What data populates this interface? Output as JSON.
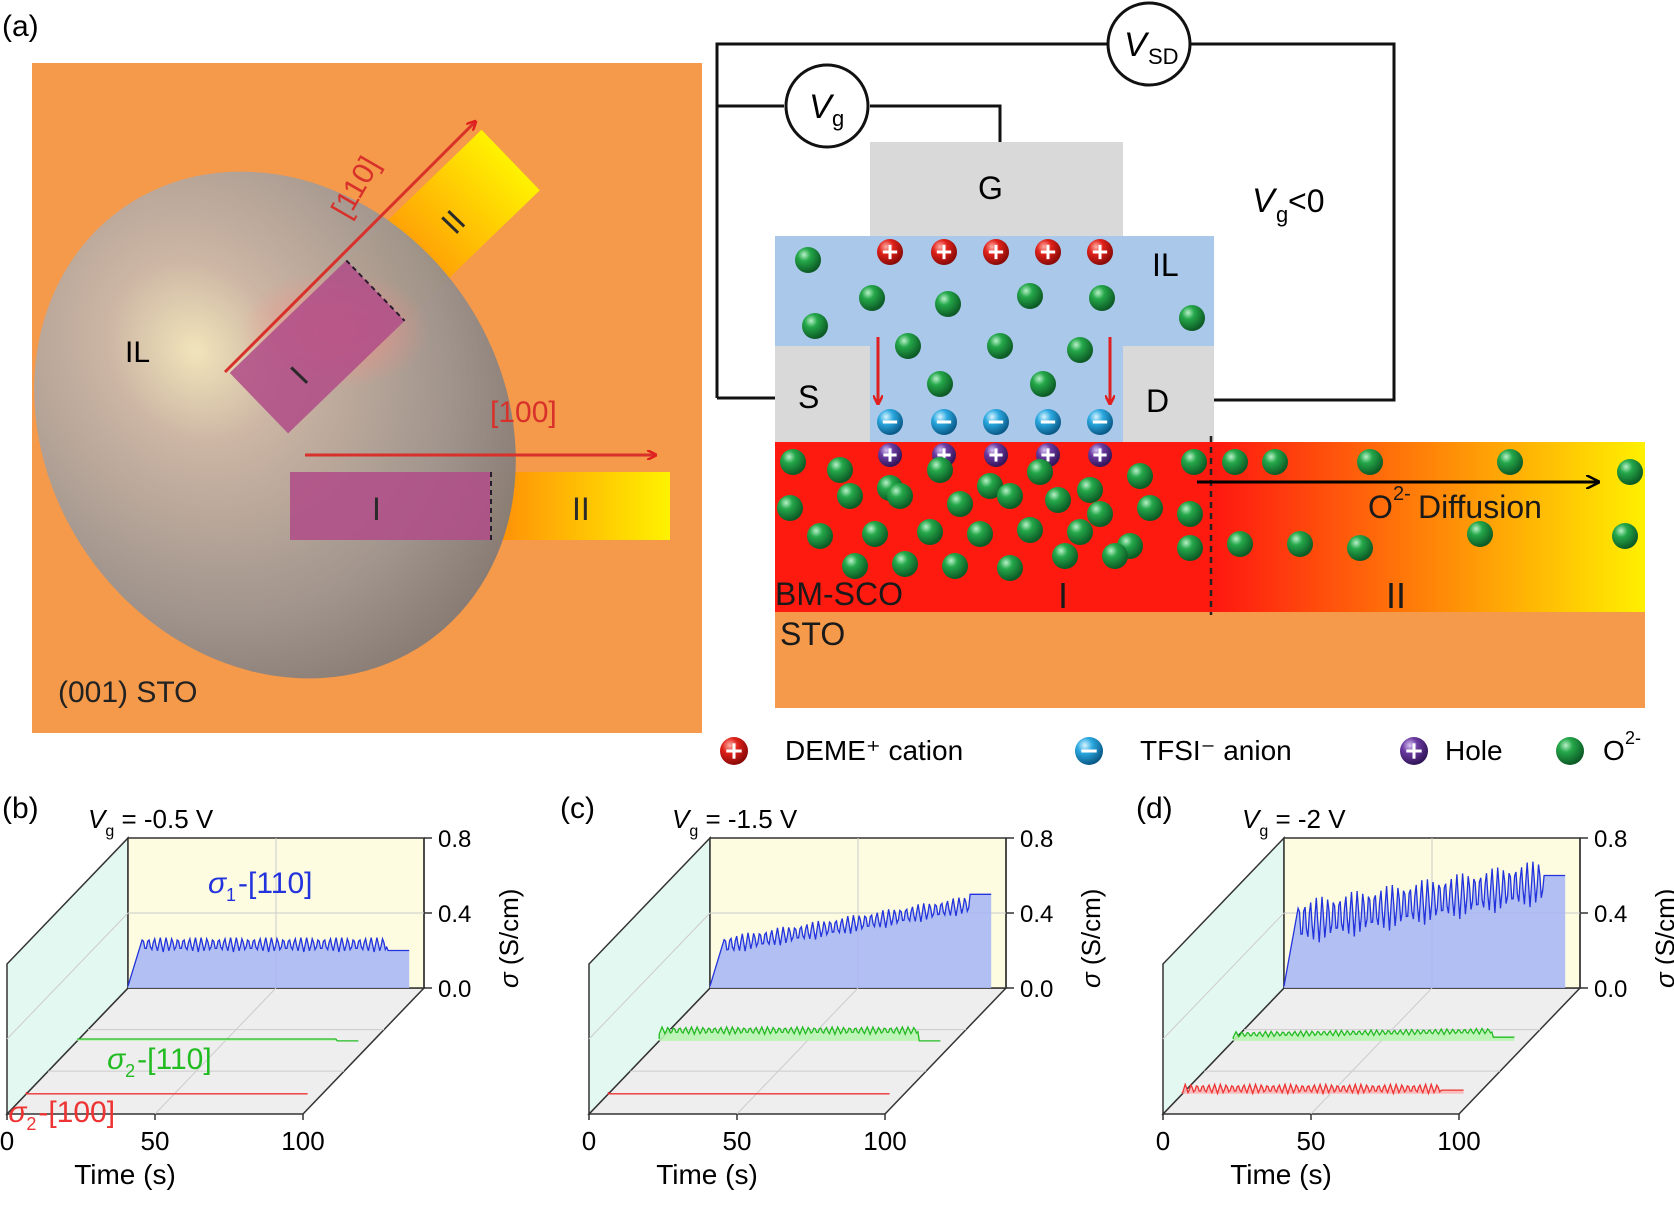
{
  "panel_labels": {
    "a": "(a)",
    "b": "(b)",
    "c": "(c)",
    "d": "(d)"
  },
  "schematic": {
    "il": "IL",
    "substrate": "(001) STO",
    "dir_110": "[110]",
    "dir_100": "[100]",
    "region_I": "I",
    "region_II": "II"
  },
  "device": {
    "vsd_label": "V",
    "vsd_sub": "SD",
    "vg_label": "V",
    "vg_sub": "g",
    "gate": "G",
    "source": "S",
    "drain": "D",
    "il": "IL",
    "condition_v": "V",
    "condition_sub": "g",
    "condition_rest": " <0",
    "film": "BM-SCO",
    "substrate": "STO",
    "region_I": "I",
    "region_II": "II",
    "diffusion_label": "O",
    "diffusion_sup": "2-",
    "diffusion_rest": " Diffusion"
  },
  "legend": {
    "cation": "DEME⁺ cation",
    "anion": "TFSI⁻ anion",
    "hole": "Hole",
    "oxygen_base": "O",
    "oxygen_sup": "2-"
  },
  "colors": {
    "substrate_orange": "#f5994a",
    "film_red": "#ff1a10",
    "film_yellow": "#fff000",
    "il_blue": "#a9c8ea",
    "electrode_gray": "#d9d9d9",
    "oxygen_green": "#1a9a3c",
    "cation_red": "#e0221a",
    "anion_cyan": "#2aa8e0",
    "hole_purple": "#6a3aa0",
    "sigma1_blue": "#2233dd",
    "sigma2_green": "#22cc22",
    "sigma2_red": "#ee3333"
  },
  "chart_data": [
    {
      "type": "line",
      "panel": "(b)",
      "title_v": "V",
      "title_sub": "g",
      "title_rest": " = -0.5 V",
      "xlabel": "Time (s)",
      "xticks": [
        "0",
        "50",
        "100"
      ],
      "xlim": [
        0,
        100
      ],
      "ylabel_sym": "σ",
      "ylabel_rest": " (S/cm)",
      "yticks": [
        "0.8",
        "0.4",
        "0.0"
      ],
      "ylim": [
        0,
        0.8
      ],
      "series": [
        {
          "name_sym": "σ",
          "name_sub": "1",
          "name_rest": "-[110]",
          "base": 0.22,
          "amp": 0.08,
          "end": 0.2,
          "slope": 0
        },
        {
          "name_sym": "σ",
          "name_sub": "2",
          "name_rest": "-[110]",
          "base": 0.01,
          "amp": 0.0,
          "end": 0.0,
          "slope": 0
        },
        {
          "name_sym": "σ",
          "name_sub": "2",
          "name_rest": "-[100]",
          "base": 0.0,
          "amp": 0.0,
          "end": 0.0,
          "slope": 0
        }
      ]
    },
    {
      "type": "line",
      "panel": "(c)",
      "title_v": "V",
      "title_sub": "g",
      "title_rest": " = -1.5 V",
      "xlabel": "Time (s)",
      "xticks": [
        "0",
        "50",
        "100"
      ],
      "xlim": [
        0,
        100
      ],
      "ylabel_sym": "σ",
      "ylabel_rest": " (S/cm)",
      "yticks": [
        "0.8",
        "0.4",
        "0.0"
      ],
      "ylim": [
        0,
        0.8
      ],
      "series": [
        {
          "name_sym": "",
          "name_sub": "",
          "name_rest": "",
          "base": 0.2,
          "amp": 0.1,
          "end": 0.5,
          "slope": 0.25
        },
        {
          "name_sym": "",
          "name_sub": "",
          "name_rest": "",
          "base": 0.05,
          "amp": 0.04,
          "end": 0.0,
          "slope": 0
        },
        {
          "name_sym": "",
          "name_sub": "",
          "name_rest": "",
          "base": 0.0,
          "amp": 0.0,
          "end": 0.0,
          "slope": 0
        }
      ]
    },
    {
      "type": "line",
      "panel": "(d)",
      "title_v": "V",
      "title_sub": "g",
      "title_rest": " = -2 V",
      "xlabel": "Time (s)",
      "xticks": [
        "0",
        "50",
        "100"
      ],
      "xlim": [
        0,
        100
      ],
      "ylabel_sym": "σ",
      "ylabel_rest": " (S/cm)",
      "yticks": [
        "0.8",
        "0.4",
        "0.0"
      ],
      "ylim": [
        0,
        0.8
      ],
      "series": [
        {
          "name_sym": "",
          "name_sub": "",
          "name_rest": "",
          "base": 0.3,
          "amp": 0.25,
          "end": 0.6,
          "slope": 0.25
        },
        {
          "name_sym": "",
          "name_sub": "",
          "name_rest": "",
          "base": 0.03,
          "amp": 0.03,
          "end": 0.02,
          "slope": 0.02
        },
        {
          "name_sym": "",
          "name_sub": "",
          "name_rest": "",
          "base": 0.02,
          "amp": 0.05,
          "end": 0.02,
          "slope": 0
        }
      ]
    }
  ]
}
